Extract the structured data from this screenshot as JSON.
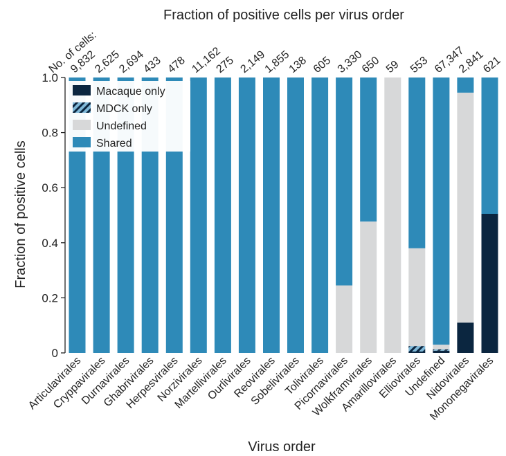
{
  "chart_data": {
    "type": "bar",
    "stacked": true,
    "title": "Fraction of positive cells per virus order",
    "xlabel": "Virus order",
    "ylabel": "Fraction of positive cells",
    "ylim": [
      0,
      1.0
    ],
    "yticks": [
      "0",
      "0.2",
      "0.4",
      "0.6",
      "0.8",
      "1.0"
    ],
    "counts_label": "No. of cells:",
    "categories": [
      "Articulavirales",
      "Cryppavirales",
      "Durnavirales",
      "Ghabrivirales",
      "Herpesvirales",
      "Norzivirales",
      "Martellivirales",
      "Ourlivirales",
      "Reovirales",
      "Sobelivirales",
      "Tolivirales",
      "Picornavirales",
      "Wolkframvirales",
      "Amarillovirales",
      "Elliovirales",
      "Undefined",
      "Nidovirales",
      "Mononegavirales"
    ],
    "cell_counts": [
      "9,832",
      "2,625",
      "2,694",
      "433",
      "478",
      "11,162",
      "275",
      "2,149",
      "1,855",
      "138",
      "605",
      "3,330",
      "650",
      "59",
      "553",
      "67,347",
      "2,841",
      "621"
    ],
    "series": [
      {
        "name": "Macaque only",
        "color": "#0b2640",
        "pattern": "solid",
        "values": [
          0,
          0,
          0,
          0,
          0,
          0,
          0,
          0,
          0,
          0,
          0,
          0,
          0,
          0,
          0.005,
          0.008,
          0.11,
          0.505
        ]
      },
      {
        "name": "MDCK only",
        "color": "#7fb8d8",
        "pattern": "hatched",
        "values": [
          0,
          0,
          0,
          0,
          0,
          0,
          0,
          0,
          0,
          0,
          0,
          0,
          0,
          0,
          0.02,
          0.005,
          0,
          0
        ]
      },
      {
        "name": "Undefined",
        "color": "#d7d8d9",
        "pattern": "solid",
        "values": [
          0,
          0,
          0,
          0,
          0,
          0,
          0,
          0,
          0,
          0,
          0,
          0.245,
          0.477,
          1.0,
          0.355,
          0.017,
          0.835,
          0
        ]
      },
      {
        "name": "Shared",
        "color": "#2e8ab8",
        "pattern": "solid",
        "values": [
          1,
          1,
          1,
          1,
          1,
          1,
          1,
          1,
          1,
          1,
          1,
          0.755,
          0.523,
          0,
          0.62,
          0.97,
          0.055,
          0.495
        ]
      }
    ],
    "legend_position": "top-left",
    "grid": false
  }
}
